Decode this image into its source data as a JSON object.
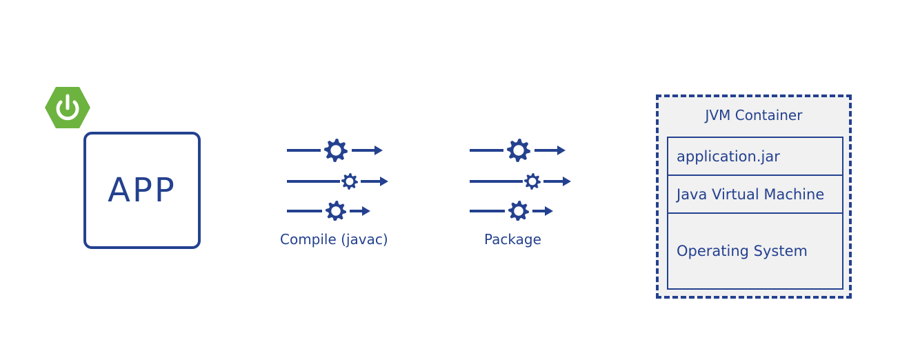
{
  "logo": {
    "name": "spring-power-icon",
    "color": "#6db33f"
  },
  "app": {
    "label": "APP"
  },
  "steps": [
    {
      "label": "Compile (javac)"
    },
    {
      "label": "Package"
    }
  ],
  "jvm_container": {
    "title": "JVM Container",
    "layers": [
      {
        "label": "application.jar"
      },
      {
        "label": "Java Virtual Machine"
      },
      {
        "label": "Operating System"
      }
    ]
  },
  "colors": {
    "primary": "#24418f",
    "accent": "#6db33f",
    "container_fill": "#f1f1f1"
  }
}
